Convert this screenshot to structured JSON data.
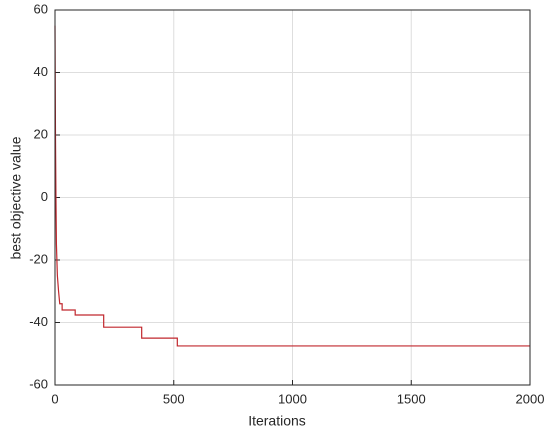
{
  "chart_data": {
    "type": "line",
    "x_label": "Iterations",
    "y_label": "best objective value",
    "x": [
      0,
      2,
      4,
      6,
      10,
      15,
      20,
      30,
      30,
      85,
      85,
      205,
      205,
      365,
      365,
      515,
      515,
      2000
    ],
    "series": [
      {
        "color": "#c1272d",
        "values": [
          55,
          20,
          0,
          -15,
          -25,
          -30,
          -34,
          -34,
          -36,
          -36,
          -37.6,
          -37.6,
          -41.5,
          -41.5,
          -45,
          -45,
          -47.5,
          -47.5
        ]
      }
    ],
    "xlim": [
      0,
      2000
    ],
    "xticks": [
      0,
      500,
      1000,
      1500,
      2000
    ],
    "ylim": [
      -60,
      60
    ],
    "yticks": [
      -60,
      -40,
      -20,
      0,
      20,
      40,
      60
    ],
    "grid": true
  }
}
